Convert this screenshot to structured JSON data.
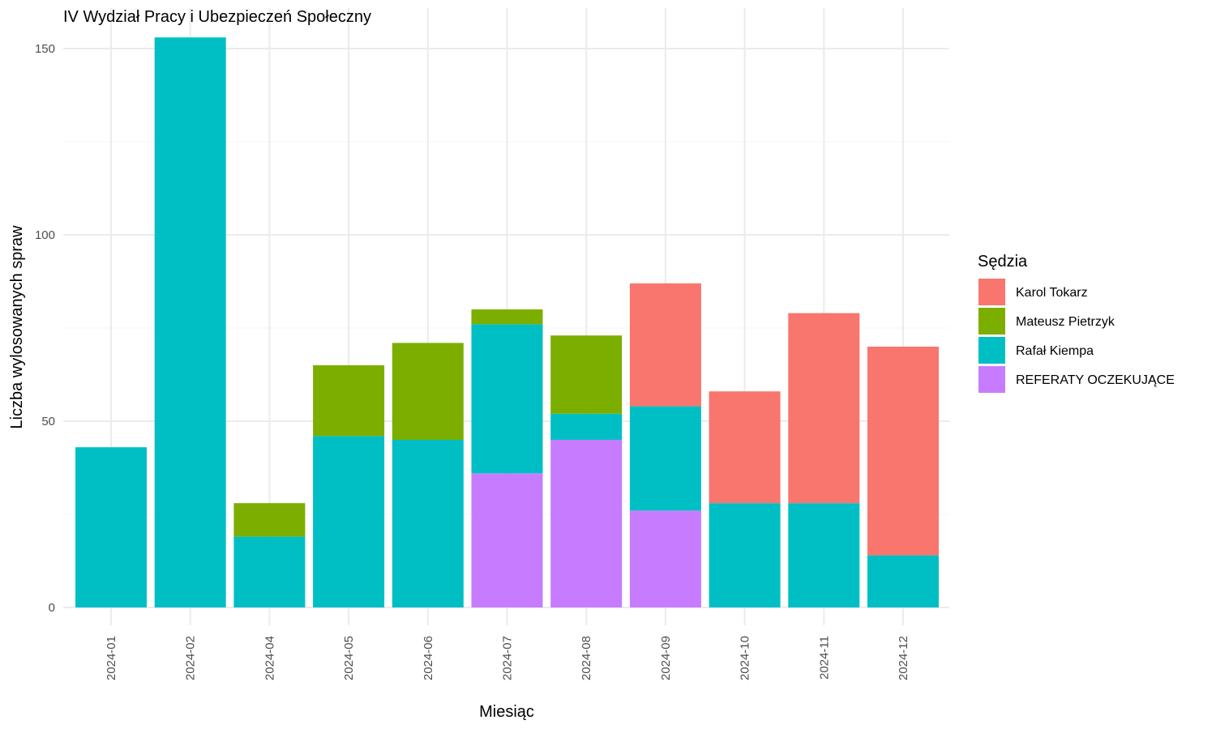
{
  "chart_data": {
    "type": "bar",
    "stacked": true,
    "title": "IV Wydział Pracy i Ubezpieczeń Społeczny",
    "xlabel": "Miesiąc",
    "ylabel": "Liczba wylosowanych spraw",
    "ylim": [
      0,
      157
    ],
    "yticks": [
      0,
      50,
      100,
      150
    ],
    "grid": true,
    "legend": {
      "title": "Sędzia",
      "position": "right"
    },
    "categories": [
      "2024-01",
      "2024-02",
      "2024-04",
      "2024-05",
      "2024-06",
      "2024-07",
      "2024-08",
      "2024-09",
      "2024-10",
      "2024-11",
      "2024-12"
    ],
    "series": [
      {
        "name": "Karol Tokarz",
        "color": "#F8766D",
        "values": [
          0,
          0,
          0,
          0,
          0,
          0,
          0,
          33,
          30,
          51,
          56
        ]
      },
      {
        "name": "Mateusz Pietrzyk",
        "color": "#7CAE00",
        "values": [
          0,
          0,
          9,
          19,
          26,
          4,
          21,
          0,
          0,
          0,
          0
        ]
      },
      {
        "name": "Rafał Kiempa",
        "color": "#00BFC4",
        "values": [
          43,
          153,
          19,
          46,
          45,
          40,
          7,
          28,
          28,
          28,
          14
        ]
      },
      {
        "name": "REFERATY OCZEKUJĄCE",
        "color": "#C77CFF",
        "values": [
          0,
          0,
          0,
          0,
          0,
          36,
          45,
          26,
          0,
          0,
          0
        ]
      }
    ]
  }
}
